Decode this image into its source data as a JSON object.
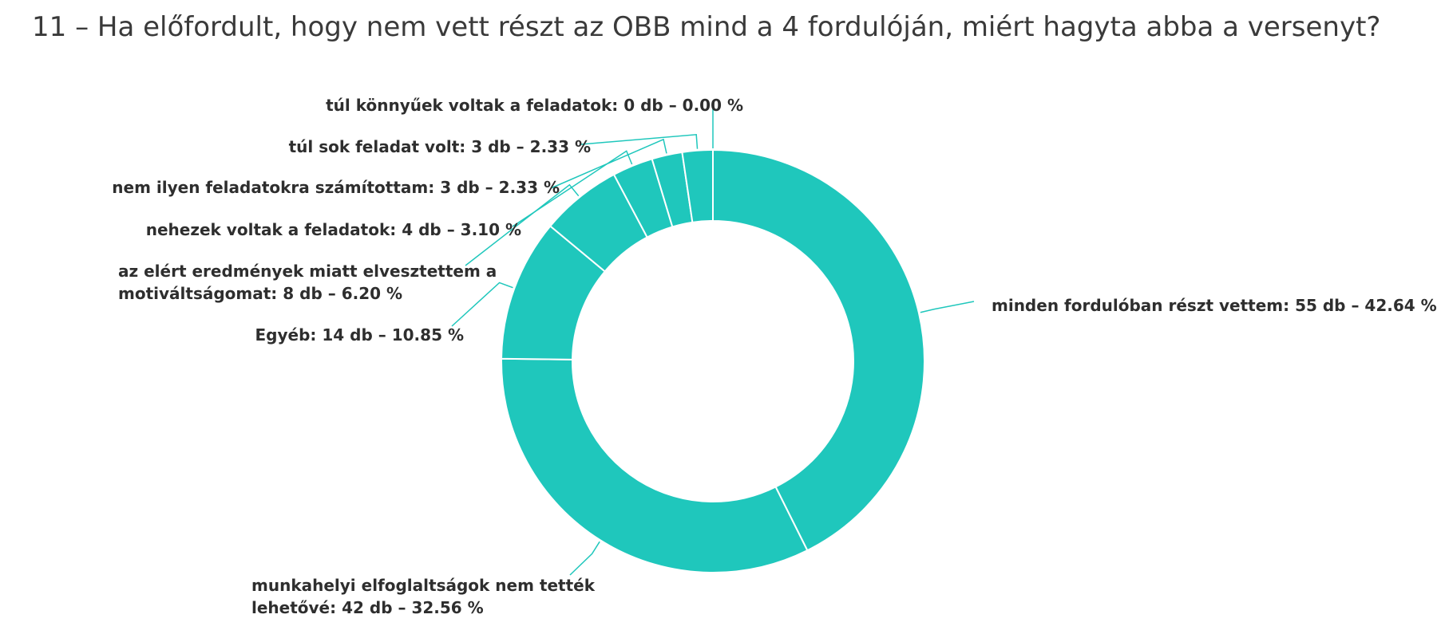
{
  "chart_data": {
    "type": "donut",
    "title": "11 – Ha előfordult, hogy nem vett részt az OBB mind a 4 fordulóján, miért hagyta abba a versenyt?",
    "categories": [
      "minden fordulóban részt vettem: 55 db – 42.64 %",
      "munkahelyi elfoglaltságok nem tették lehetővé: 42 db – 32.56 %",
      "Egyéb: 14 db – 10.85 %",
      "az elért eredmények miatt elvesztettem a motiváltságomat: 8 db – 6.20 %",
      "nehezek voltak a feladatok: 4 db – 3.10 %",
      "nem ilyen feladatokra számítottam: 3 db – 2.33 %",
      "túl sok feladat volt: 3 db – 2.33 %",
      "túl könnyűek voltak a feladatok: 0 db – 0.00 %"
    ],
    "values": [
      55,
      42,
      14,
      8,
      4,
      3,
      3,
      0
    ],
    "color": "#1fc7bc"
  }
}
